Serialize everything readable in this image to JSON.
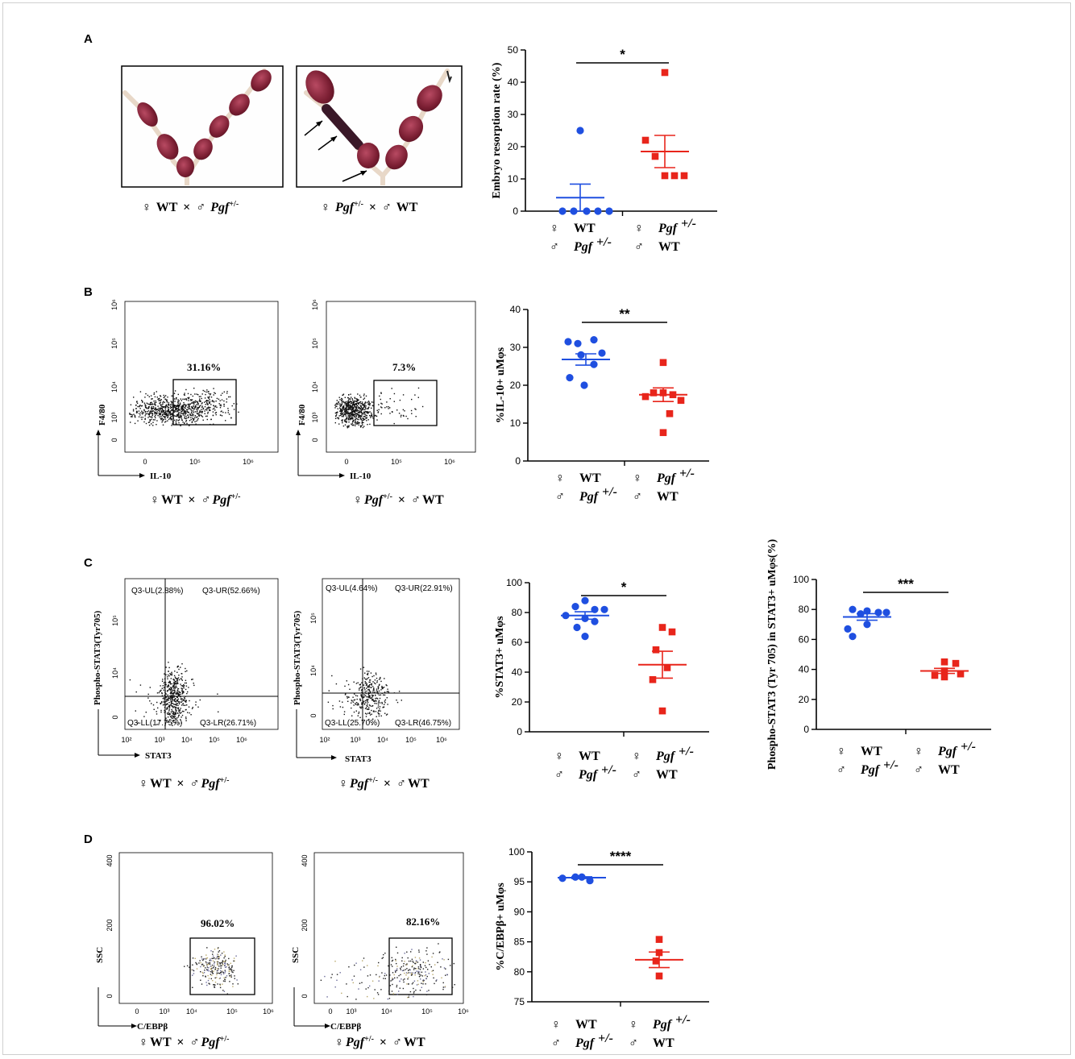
{
  "panels": {
    "A": {
      "letter": "A",
      "photo_left_caption": {
        "female": "♀",
        "female_strain": "WT",
        "times": "×",
        "male": "♂",
        "male_strain": "Pgf",
        "male_sup": "+/-"
      },
      "photo_right_caption": {
        "female": "♀",
        "female_strain": "Pgf",
        "female_sup": "+/-",
        "times": "×",
        "male": "♂",
        "male_strain": "WT"
      }
    },
    "B": {
      "letter": "B",
      "flow_left": {
        "gate_pct": "31.16%",
        "xlabel": "IL-10",
        "ylabel": "F4/80"
      },
      "flow_right": {
        "gate_pct": "7.3%",
        "xlabel": "IL-10",
        "ylabel": "F4/80"
      }
    },
    "C": {
      "letter": "C",
      "flow_left": {
        "xlabel": "STAT3",
        "ylabel": "Phospho-STAT3(Tyr705)",
        "quadrants": [
          "Q3-UL(2.88%)",
          "Q3-UR(52.66%)",
          "Q3-LL(17.75%)",
          "Q3-LR(26.71%)"
        ]
      },
      "flow_right": {
        "xlabel": "STAT3",
        "ylabel": "Phospho-STAT3(Tyr705)",
        "quadrants": [
          "Q3-UL(4.64%)",
          "Q3-UR(22.91%)",
          "Q3-LL(25.70%)",
          "Q3-LR(46.75%)"
        ]
      }
    },
    "D": {
      "letter": "D",
      "flow_left": {
        "gate_pct": "96.02%",
        "xlabel": "C/EBPβ",
        "ylabel": "SSC"
      },
      "flow_right": {
        "gate_pct": "82.16%",
        "xlabel": "C/EBPβ",
        "ylabel": "SSC"
      }
    }
  },
  "group_labels": {
    "female": "♀",
    "male": "♂",
    "wt": "WT",
    "pgf": "Pgf",
    "pgf_sup": "+/-"
  },
  "colors": {
    "wt": "#1f4fe0",
    "pgf": "#e8251b"
  },
  "chart_data": [
    {
      "id": "A",
      "type": "scatter",
      "ylabel": "Embryo resorption rate (%)",
      "ylim": [
        0,
        50
      ],
      "yticks": [
        0,
        10,
        20,
        30,
        40,
        50
      ],
      "significance": "*",
      "series": [
        {
          "group": "WT female x Pgf+/- male",
          "values": [
            25,
            0,
            0,
            0,
            0,
            0
          ],
          "mean": 4.2,
          "sem": 4.2
        },
        {
          "group": "Pgf+/- female x WT male",
          "values": [
            43,
            22,
            17,
            11,
            11,
            11
          ],
          "mean": 18.5,
          "sem": 5.0
        }
      ]
    },
    {
      "id": "B",
      "type": "scatter",
      "ylabel": "%IL-10+ uMφs",
      "ylim": [
        0,
        40
      ],
      "yticks": [
        0,
        10,
        20,
        30,
        40
      ],
      "significance": "**",
      "series": [
        {
          "group": "WT female x Pgf+/- male",
          "values": [
            31.5,
            31,
            32,
            28.5,
            28,
            25.5,
            22,
            20
          ],
          "mean": 26.8,
          "sem": 1.5
        },
        {
          "group": "Pgf+/- female x WT male",
          "values": [
            26,
            18,
            18,
            17.5,
            17,
            16,
            12.5,
            7.5
          ],
          "mean": 17.5,
          "sem": 1.8
        }
      ]
    },
    {
      "id": "C1",
      "type": "scatter",
      "ylabel": "%STAT3+ uMφs",
      "ylim": [
        0,
        100
      ],
      "yticks": [
        0,
        20,
        40,
        60,
        80,
        100
      ],
      "significance": "*",
      "series": [
        {
          "group": "WT female x Pgf+/- male",
          "values": [
            88,
            84,
            82,
            82,
            78,
            76,
            74,
            70,
            64
          ],
          "mean": 78,
          "sem": 2.5
        },
        {
          "group": "Pgf+/- female x WT male",
          "values": [
            70,
            67,
            55,
            43,
            35,
            14
          ],
          "mean": 45,
          "sem": 9
        }
      ]
    },
    {
      "id": "C2",
      "type": "scatter",
      "ylabel": "Phospho-STAT3 (Tyr 705) in STAT3+ uMφs(%)",
      "ylim": [
        0,
        100
      ],
      "yticks": [
        0,
        20,
        40,
        60,
        80,
        100
      ],
      "significance": "***",
      "series": [
        {
          "group": "WT female x Pgf+/- male",
          "values": [
            80,
            79,
            78,
            78,
            77,
            70,
            67,
            62
          ],
          "mean": 75,
          "sem": 2.2
        },
        {
          "group": "Pgf+/- female x WT male",
          "values": [
            45,
            44,
            39,
            37,
            36,
            35
          ],
          "mean": 39,
          "sem": 1.7
        }
      ]
    },
    {
      "id": "D",
      "type": "scatter",
      "ylabel": "%C/EBPβ+ uMφs",
      "ylim": [
        75,
        100
      ],
      "yticks": [
        75,
        80,
        85,
        90,
        95,
        100
      ],
      "significance": "****",
      "series": [
        {
          "group": "WT female x Pgf+/- male",
          "values": [
            95.8,
            95.6,
            95.8,
            95.2
          ],
          "mean": 95.7,
          "sem": 0.15
        },
        {
          "group": "Pgf+/- female x WT male",
          "values": [
            85.4,
            83.2,
            81.8,
            79.3
          ],
          "mean": 82,
          "sem": 1.3
        }
      ]
    }
  ]
}
